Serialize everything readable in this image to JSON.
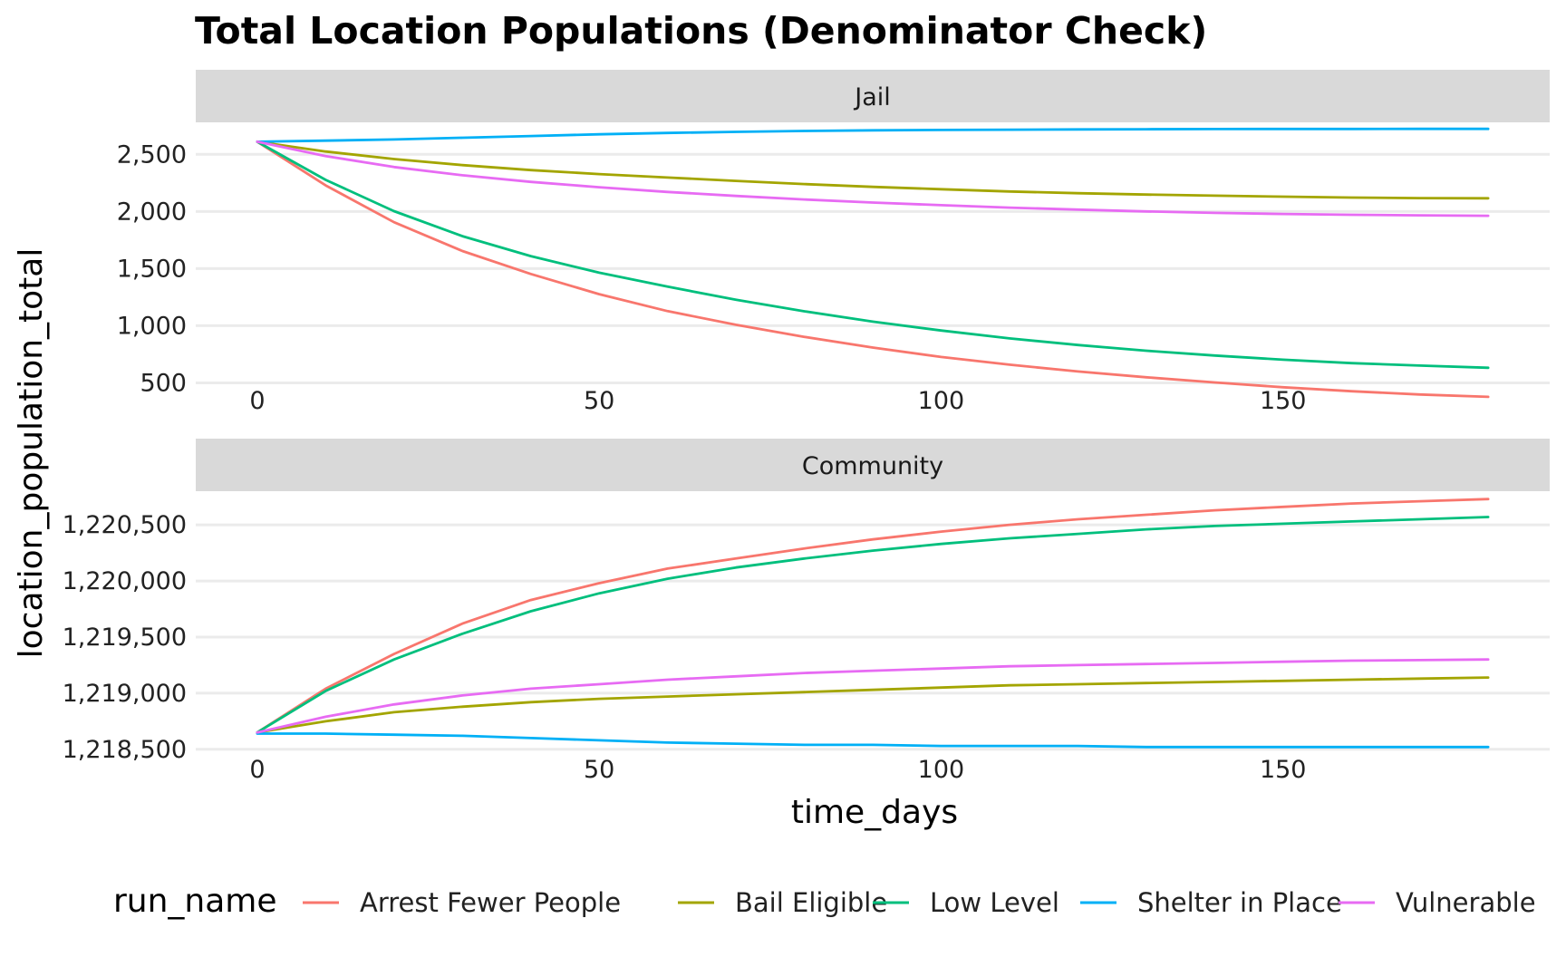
{
  "chart_data": {
    "type": "line",
    "title": "Total Location Populations (Denominator Check)",
    "xlabel": "time_days",
    "ylabel": "location_population_total",
    "legend_title": "run_name",
    "legend_position": "bottom",
    "grid": "major horizontal only",
    "x_ticks": [
      0,
      50,
      100,
      150
    ],
    "x_tick_labels": [
      "0",
      "50",
      "100",
      "150"
    ],
    "xlim": [
      -9,
      189
    ],
    "x": [
      0,
      10,
      20,
      30,
      40,
      50,
      60,
      70,
      80,
      90,
      100,
      110,
      120,
      130,
      140,
      150,
      160,
      170,
      180
    ],
    "colors": {
      "Arrest Fewer People": "#F8766D",
      "Bail Eligible": "#A3A500",
      "Low Level": "#00BF7D",
      "Shelter in Place": "#00B0F6",
      "Vulnerable": "#E76BF3"
    },
    "panels": [
      {
        "strip": "Jail",
        "ylim": [
          480,
          2780
        ],
        "y_ticks": [
          500,
          1000,
          1500,
          2000,
          2500
        ],
        "y_tick_labels": [
          "500",
          "1,000",
          "1,500",
          "2,000",
          "2,500"
        ],
        "series": [
          {
            "name": "Arrest Fewer People",
            "values": [
              2610,
              2228,
              1906,
              1654,
              1453,
              1276,
              1128,
              1008,
              903,
              809,
              727,
              659,
              600,
              549,
              504,
              462,
              427,
              398,
              378
            ]
          },
          {
            "name": "Bail Eligible",
            "values": [
              2610,
              2525,
              2459,
              2406,
              2362,
              2327,
              2297,
              2268,
              2240,
              2215,
              2195,
              2175,
              2160,
              2148,
              2138,
              2130,
              2122,
              2117,
              2115
            ]
          },
          {
            "name": "Low Level",
            "values": [
              2610,
              2276,
              2003,
              1784,
              1609,
              1464,
              1342,
              1228,
              1126,
              1036,
              958,
              889,
              831,
              781,
              739,
              703,
              673,
              651,
              632
            ]
          },
          {
            "name": "Shelter in Place",
            "values": [
              2610,
              2620,
              2630,
              2645,
              2660,
              2675,
              2687,
              2697,
              2705,
              2710,
              2713,
              2716,
              2718,
              2720,
              2721,
              2722,
              2722,
              2723,
              2723
            ]
          },
          {
            "name": "Vulnerable",
            "values": [
              2610,
              2485,
              2389,
              2317,
              2259,
              2212,
              2171,
              2136,
              2105,
              2078,
              2055,
              2034,
              2016,
              2000,
              1988,
              1978,
              1971,
              1966,
              1962
            ]
          }
        ]
      },
      {
        "strip": "Community",
        "ylim": [
          1218450,
          1220800
        ],
        "y_ticks": [
          1218500,
          1219000,
          1219500,
          1220000,
          1220500
        ],
        "y_tick_labels": [
          "1,218,500",
          "1,219,000",
          "1,219,500",
          "1,220,000",
          "1,220,500"
        ],
        "series": [
          {
            "name": "Arrest Fewer People",
            "values": [
              1218650,
              1219040,
              1219350,
              1219620,
              1219830,
              1219980,
              1220110,
              1220200,
              1220290,
              1220370,
              1220440,
              1220500,
              1220550,
              1220590,
              1220630,
              1220660,
              1220690,
              1220710,
              1220730
            ]
          },
          {
            "name": "Bail Eligible",
            "values": [
              1218650,
              1218750,
              1218830,
              1218880,
              1218920,
              1218950,
              1218970,
              1218990,
              1219010,
              1219030,
              1219050,
              1219070,
              1219080,
              1219090,
              1219100,
              1219110,
              1219120,
              1219130,
              1219140
            ]
          },
          {
            "name": "Low Level",
            "values": [
              1218650,
              1219020,
              1219300,
              1219530,
              1219730,
              1219890,
              1220020,
              1220120,
              1220200,
              1220270,
              1220330,
              1220380,
              1220420,
              1220460,
              1220490,
              1220510,
              1220530,
              1220550,
              1220570
            ]
          },
          {
            "name": "Shelter in Place",
            "values": [
              1218640,
              1218640,
              1218630,
              1218620,
              1218600,
              1218580,
              1218560,
              1218550,
              1218540,
              1218540,
              1218530,
              1218530,
              1218530,
              1218520,
              1218520,
              1218520,
              1218520,
              1218520,
              1218520
            ]
          },
          {
            "name": "Vulnerable",
            "values": [
              1218650,
              1218790,
              1218900,
              1218980,
              1219040,
              1219080,
              1219120,
              1219150,
              1219180,
              1219200,
              1219220,
              1219240,
              1219250,
              1219260,
              1219270,
              1219280,
              1219290,
              1219295,
              1219300
            ]
          }
        ]
      }
    ]
  }
}
